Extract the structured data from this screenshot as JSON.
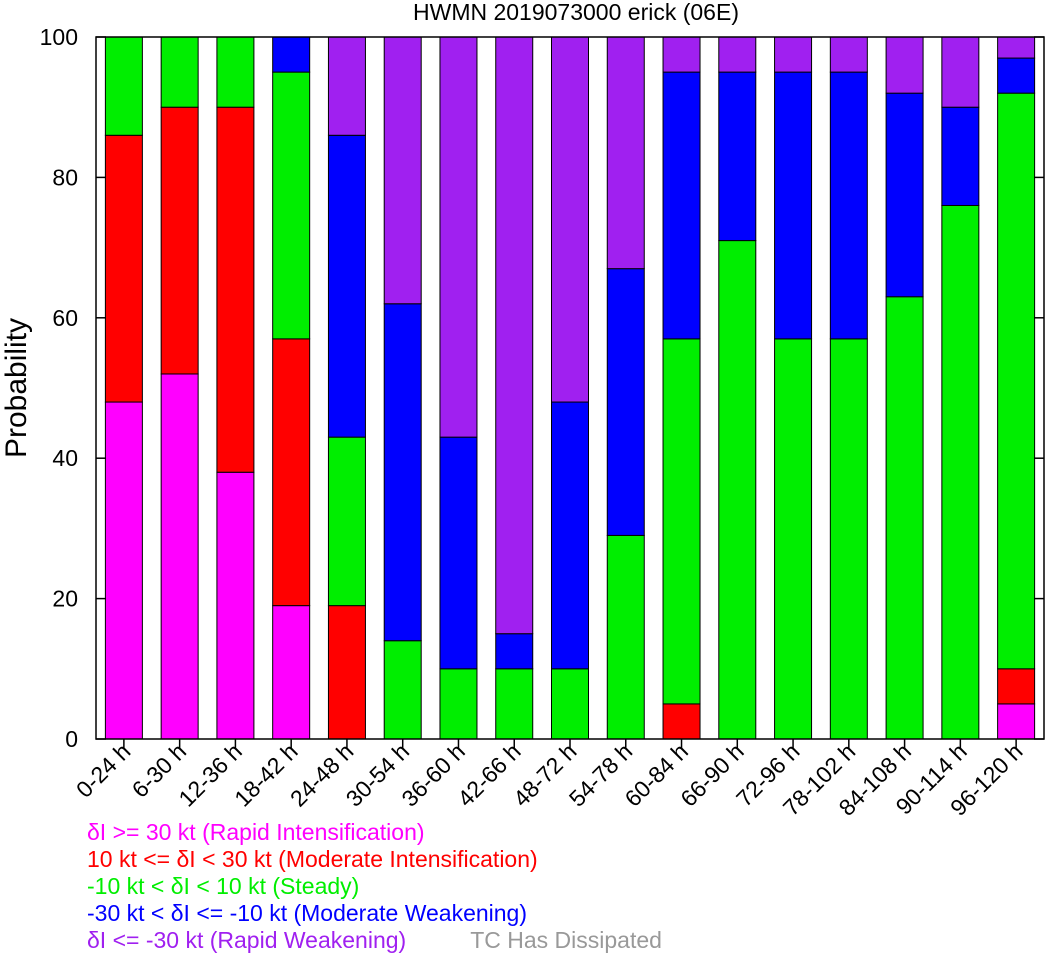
{
  "chart_data": {
    "type": "bar",
    "stacked": true,
    "title": "HWMN 2019073000 erick (06E)",
    "ylabel": "Probability",
    "xlabel": "",
    "ylim": [
      0,
      100
    ],
    "yticks": [
      0,
      20,
      40,
      60,
      80,
      100
    ],
    "grid": false,
    "categories": [
      "0-24 h",
      "6-30 h",
      "12-36 h",
      "18-42 h",
      "24-48 h",
      "30-54 h",
      "36-60 h",
      "42-66 h",
      "48-72 h",
      "54-78 h",
      "60-84 h",
      "66-90 h",
      "72-96 h",
      "78-102 h",
      "84-108 h",
      "90-114 h",
      "96-120 h"
    ],
    "series": [
      {
        "name": "δI >= 30 kt (Rapid Intensification)",
        "color": "#ff00ff",
        "values": [
          48,
          52,
          38,
          19,
          0,
          0,
          0,
          0,
          0,
          0,
          0,
          0,
          0,
          0,
          0,
          0,
          5
        ]
      },
      {
        "name": "10 kt <= δI < 30 kt (Moderate Intensification)",
        "color": "#ff0000",
        "values": [
          38,
          38,
          52,
          38,
          19,
          0,
          0,
          0,
          0,
          0,
          5,
          0,
          0,
          0,
          0,
          0,
          5
        ]
      },
      {
        "name": "-10 kt < δI < 10 kt (Steady)",
        "color": "#00ee00",
        "values": [
          14,
          10,
          10,
          38,
          24,
          14,
          10,
          10,
          10,
          29,
          52,
          71,
          57,
          57,
          63,
          76,
          82
        ]
      },
      {
        "name": "-30 kt < δI <= -10 kt (Moderate Weakening)",
        "color": "#0000ff",
        "values": [
          0,
          0,
          0,
          5,
          43,
          48,
          33,
          5,
          38,
          38,
          38,
          24,
          38,
          38,
          29,
          14,
          5
        ]
      },
      {
        "name": "δI <= -30 kt (Rapid Weakening)",
        "color": "#a020f0",
        "values": [
          0,
          0,
          0,
          0,
          14,
          38,
          57,
          85,
          52,
          33,
          5,
          5,
          5,
          5,
          8,
          10,
          3
        ]
      },
      {
        "name": "TC Has Dissipated",
        "color": "#999999",
        "values": [
          0,
          0,
          0,
          0,
          0,
          0,
          0,
          0,
          0,
          0,
          0,
          0,
          0,
          0,
          0,
          0,
          0
        ]
      }
    ],
    "legend": {
      "placement": "bottom-left",
      "lines": [
        [
          {
            "text": "δI >= 30 kt (Rapid Intensification)",
            "color": "#ff00ff"
          }
        ],
        [
          {
            "text": "10 kt <= δI < 30 kt (Moderate Intensification)",
            "color": "#ff0000"
          }
        ],
        [
          {
            "text": "-10 kt < δI < 10 kt (Steady)",
            "color": "#00ee00"
          }
        ],
        [
          {
            "text": "-30 kt < δI <= -10 kt (Moderate Weakening)",
            "color": "#0000ff"
          }
        ],
        [
          {
            "text": "δI <= -30 kt (Rapid Weakening)",
            "color": "#a020f0"
          },
          {
            "text": "TC Has Dissipated",
            "color": "#999999"
          }
        ]
      ]
    }
  }
}
